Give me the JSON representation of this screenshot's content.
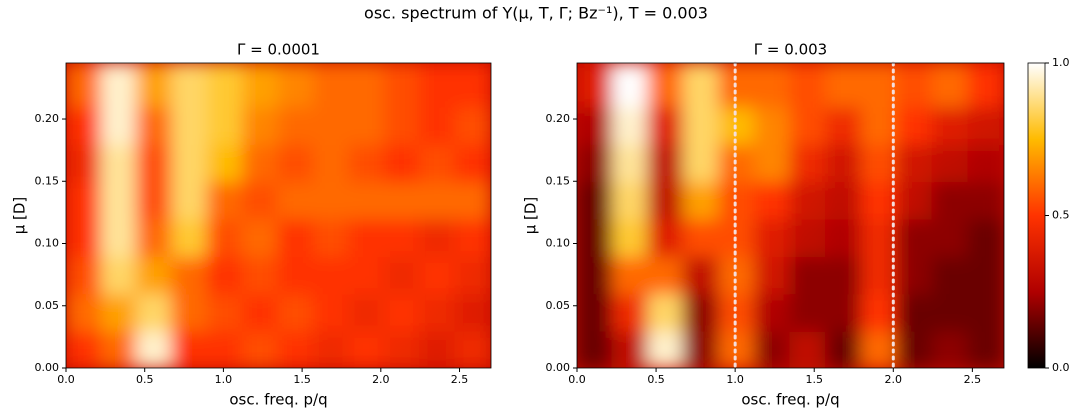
{
  "title": "osc. spectrum of Y(μ, T, Γ; Bz⁻¹), T = 0.003",
  "colormap": [
    "#000000",
    "#b00000",
    "#ff3300",
    "#ffbb00",
    "#ffffff"
  ],
  "chart_data": [
    {
      "type": "heatmap",
      "title": "Γ = 0.0001",
      "xlabel": "osc. freq. p/q",
      "ylabel": "μ  [D]",
      "xlim": [
        0,
        2.7
      ],
      "ylim": [
        0,
        0.245
      ],
      "xbins": [
        0,
        0.225,
        0.45,
        0.675,
        0.9,
        1.125,
        1.35,
        1.575,
        1.8,
        2.025,
        2.25,
        2.475,
        2.7
      ],
      "ybins": [
        0,
        0.03,
        0.06,
        0.09,
        0.12,
        0.15,
        0.18,
        0.21,
        0.245
      ],
      "z": [
        [
          0.5,
          0.6,
          0.95,
          0.5,
          0.5,
          0.55,
          0.5,
          0.45,
          0.5,
          0.45,
          0.4,
          0.45
        ],
        [
          0.6,
          0.7,
          0.85,
          0.6,
          0.55,
          0.5,
          0.55,
          0.5,
          0.45,
          0.5,
          0.45,
          0.4
        ],
        [
          0.55,
          0.85,
          0.7,
          0.6,
          0.5,
          0.55,
          0.5,
          0.5,
          0.5,
          0.45,
          0.5,
          0.45
        ],
        [
          0.5,
          0.9,
          0.6,
          0.8,
          0.55,
          0.6,
          0.5,
          0.55,
          0.5,
          0.5,
          0.45,
          0.5
        ],
        [
          0.5,
          0.9,
          0.55,
          0.85,
          0.6,
          0.55,
          0.6,
          0.6,
          0.6,
          0.6,
          0.6,
          0.6
        ],
        [
          0.45,
          0.9,
          0.55,
          0.85,
          0.75,
          0.6,
          0.55,
          0.6,
          0.55,
          0.5,
          0.55,
          0.5
        ],
        [
          0.5,
          0.95,
          0.6,
          0.85,
          0.8,
          0.65,
          0.6,
          0.6,
          0.6,
          0.55,
          0.5,
          0.55
        ],
        [
          0.6,
          0.95,
          0.7,
          0.85,
          0.8,
          0.7,
          0.65,
          0.6,
          0.6,
          0.55,
          0.5,
          0.5
        ]
      ],
      "xticks": [
        {
          "value": 0,
          "label": "0.0"
        },
        0.5,
        {
          "value": 1,
          "label": "1.0"
        },
        1.5,
        {
          "value": 2,
          "label": "2.0"
        },
        2.5
      ],
      "yticks": [
        {
          "value": 0,
          "label": "0.00"
        },
        {
          "value": 0.05,
          "label": "0.05"
        },
        {
          "value": 0.1,
          "label": "0.10"
        },
        {
          "value": 0.15,
          "label": "0.15"
        },
        {
          "value": 0.2,
          "label": "0.20"
        }
      ]
    },
    {
      "type": "heatmap",
      "title": "Γ = 0.003",
      "xlabel": "osc. freq. p/q",
      "ylabel": "μ  [D]",
      "xlim": [
        0,
        2.7
      ],
      "ylim": [
        0,
        0.245
      ],
      "xbins": [
        0,
        0.225,
        0.45,
        0.675,
        0.9,
        1.125,
        1.35,
        1.575,
        1.8,
        2.025,
        2.25,
        2.475,
        2.7
      ],
      "ybins": [
        0,
        0.03,
        0.06,
        0.09,
        0.12,
        0.15,
        0.18,
        0.21,
        0.245
      ],
      "z": [
        [
          0.15,
          0.3,
          0.95,
          0.2,
          0.6,
          0.2,
          0.3,
          0.15,
          0.6,
          0.15,
          0.2,
          0.15
        ],
        [
          0.15,
          0.45,
          0.85,
          0.2,
          0.55,
          0.25,
          0.2,
          0.2,
          0.5,
          0.15,
          0.15,
          0.15
        ],
        [
          0.15,
          0.6,
          0.6,
          0.3,
          0.6,
          0.35,
          0.2,
          0.2,
          0.45,
          0.2,
          0.15,
          0.15
        ],
        [
          0.15,
          0.8,
          0.4,
          0.55,
          0.55,
          0.4,
          0.3,
          0.25,
          0.45,
          0.2,
          0.2,
          0.15
        ],
        [
          0.15,
          0.85,
          0.3,
          0.7,
          0.55,
          0.5,
          0.35,
          0.3,
          0.5,
          0.3,
          0.2,
          0.2
        ],
        [
          0.2,
          0.9,
          0.3,
          0.85,
          0.6,
          0.65,
          0.45,
          0.35,
          0.55,
          0.35,
          0.3,
          0.25
        ],
        [
          0.25,
          0.95,
          0.4,
          0.85,
          0.75,
          0.65,
          0.55,
          0.45,
          0.6,
          0.5,
          0.4,
          0.35
        ],
        [
          0.4,
          1.0,
          0.6,
          0.85,
          0.6,
          0.6,
          0.55,
          0.6,
          0.6,
          0.55,
          0.6,
          0.5
        ]
      ],
      "vlines": [
        1,
        2
      ],
      "xticks": [
        {
          "value": 0,
          "label": "0.0"
        },
        0.5,
        {
          "value": 1,
          "label": "1.0"
        },
        1.5,
        {
          "value": 2,
          "label": "2.0"
        },
        2.5
      ],
      "yticks": [
        {
          "value": 0,
          "label": "0.00"
        },
        {
          "value": 0.05,
          "label": "0.05"
        },
        {
          "value": 0.1,
          "label": "0.10"
        },
        {
          "value": 0.15,
          "label": "0.15"
        },
        {
          "value": 0.2,
          "label": "0.20"
        }
      ],
      "colorbar": {
        "lim": [
          0,
          1
        ],
        "ticks": [
          {
            "value": 0,
            "label": "0.0"
          },
          0.5,
          {
            "value": 1,
            "label": "1.0"
          }
        ]
      }
    }
  ]
}
